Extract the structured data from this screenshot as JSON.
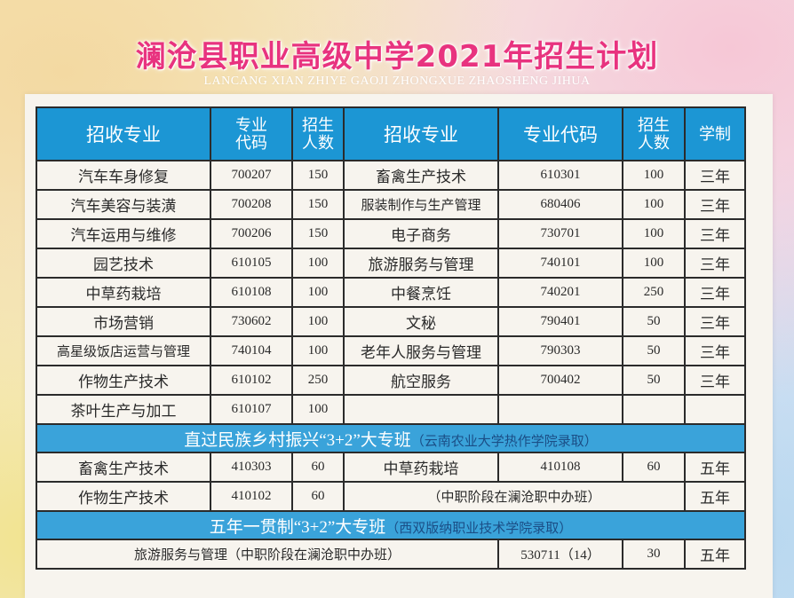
{
  "title": "澜沧县职业高级中学2021年招生计划",
  "subtitle": "LANCANG XIAN ZHIYE GAOJI ZHONGXUE ZHAOSHENG JIHUA",
  "headers": {
    "major": "招收专业",
    "code_l1": "专业",
    "code_l2": "代码",
    "num_l1": "招生",
    "num_l2": "人数",
    "major2": "招收专业",
    "code2": "专业代码",
    "num2_l1": "招生",
    "num2_l2": "人数",
    "years": "学制"
  },
  "rows": [
    {
      "m1": "汽车车身修复",
      "c1": "700207",
      "n1": "150",
      "m2": "畜禽生产技术",
      "c2": "610301",
      "n2": "100",
      "y": "三年"
    },
    {
      "m1": "汽车美容与装潢",
      "c1": "700208",
      "n1": "150",
      "m2": "服装制作与生产管理",
      "c2": "680406",
      "n2": "100",
      "y": "三年"
    },
    {
      "m1": "汽车运用与维修",
      "c1": "700206",
      "n1": "150",
      "m2": "电子商务",
      "c2": "730701",
      "n2": "100",
      "y": "三年"
    },
    {
      "m1": "园艺技术",
      "c1": "610105",
      "n1": "100",
      "m2": "旅游服务与管理",
      "c2": "740101",
      "n2": "100",
      "y": "三年"
    },
    {
      "m1": "中草药栽培",
      "c1": "610108",
      "n1": "100",
      "m2": "中餐烹饪",
      "c2": "740201",
      "n2": "250",
      "y": "三年"
    },
    {
      "m1": "市场营销",
      "c1": "730602",
      "n1": "100",
      "m2": "文秘",
      "c2": "790401",
      "n2": "50",
      "y": "三年"
    },
    {
      "m1": "高星级饭店运营与管理",
      "c1": "740104",
      "n1": "100",
      "m2": "老年人服务与管理",
      "c2": "790303",
      "n2": "50",
      "y": "三年"
    },
    {
      "m1": "作物生产技术",
      "c1": "610102",
      "n1": "250",
      "m2": "航空服务",
      "c2": "700402",
      "n2": "50",
      "y": "三年"
    },
    {
      "m1": "茶叶生产与加工",
      "c1": "610107",
      "n1": "100"
    }
  ],
  "band1": {
    "label": "直过民族乡村振兴“3+2”大专班",
    "note": "（云南农业大学热作学院录取）"
  },
  "band1_rows": {
    "r1": {
      "m1": "畜禽生产技术",
      "c1": "410303",
      "n1": "60",
      "m2": "中草药栽培",
      "c2": "410108",
      "n2": "60",
      "y": "五年"
    },
    "r2": {
      "m1": "作物生产技术",
      "c1": "410102",
      "n1": "60",
      "note": "（中职阶段在澜沧职中办班）",
      "y": "五年"
    }
  },
  "band2": {
    "label": "五年一贯制“3+2”大专班",
    "note": "（西双版纳职业技术学院录取）"
  },
  "band2_row": {
    "m": "旅游服务与管理（中职阶段在澜沧职中办班）",
    "c": "530711（14）",
    "n": "30",
    "y": "五年"
  }
}
